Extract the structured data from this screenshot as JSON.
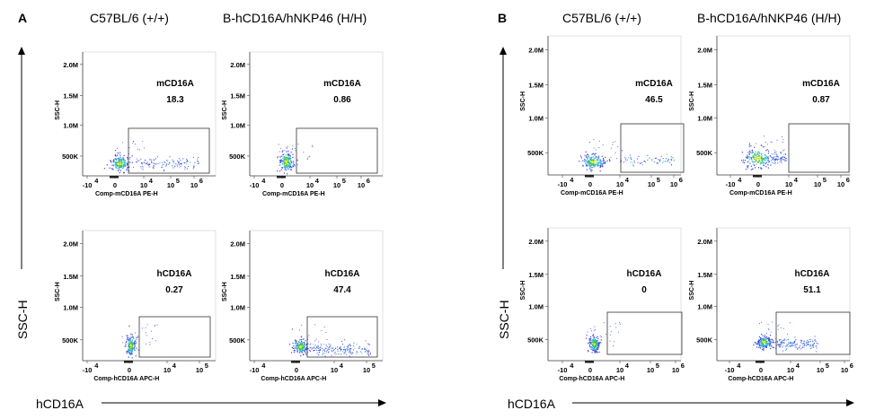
{
  "panels": [
    {
      "letter": "A",
      "col_headers": [
        "C57BL/6 (+/+)",
        "B-hCD16A/hNKP46 (H/H)"
      ],
      "big_ylabel": "SSC-H",
      "big_xlabel": "hCD16A"
    },
    {
      "letter": "B",
      "col_headers": [
        "C57BL/6 (+/+)",
        "B-hCD16A/hNKP46 (H/H)"
      ],
      "big_ylabel": "SSC-H",
      "big_xlabel": "hCD16A"
    }
  ],
  "chart_data": [
    {
      "type": "scatter",
      "panel": "A",
      "column": "C57BL/6 (+/+)",
      "gate_label": "mCD16A",
      "gate_value": "18.3",
      "xlabel": "Comp-mCD16A PE-H",
      "ylabel": "SSC-H",
      "yticks": [
        "500K",
        "1.0M",
        "1.5M",
        "2.0M"
      ],
      "xticks": [
        "-10",
        "0",
        "10",
        "10",
        "10"
      ],
      "xtick_exp": [
        "4",
        "",
        "4",
        "5",
        "6"
      ]
    },
    {
      "type": "scatter",
      "panel": "A",
      "column": "B-hCD16A/hNKP46 (H/H)",
      "gate_label": "mCD16A",
      "gate_value": "0.86",
      "xlabel": "Comp-mCD16A PE-H",
      "ylabel": "SSC-H",
      "yticks": [
        "500K",
        "1.0M",
        "1.5M",
        "2.0M"
      ],
      "xticks": [
        "-10",
        "0",
        "10",
        "10",
        "10"
      ],
      "xtick_exp": [
        "4",
        "",
        "4",
        "5",
        "6"
      ]
    },
    {
      "type": "scatter",
      "panel": "A",
      "column": "C57BL/6 (+/+)",
      "gate_label": "hCD16A",
      "gate_value": "0.27",
      "xlabel": "Comp-hCD16A APC-H",
      "ylabel": "SSC-H",
      "yticks": [
        "500K",
        "1.0M",
        "1.5M",
        "2.0M"
      ],
      "xticks": [
        "-10",
        "0",
        "10",
        "10"
      ],
      "xtick_exp": [
        "4",
        "",
        "4",
        "5"
      ]
    },
    {
      "type": "scatter",
      "panel": "A",
      "column": "B-hCD16A/hNKP46 (H/H)",
      "gate_label": "hCD16A",
      "gate_value": "47.4",
      "xlabel": "Comp-hCD16A APC-H",
      "ylabel": "SSC-H",
      "yticks": [
        "500K",
        "1.0M",
        "1.5M",
        "2.0M"
      ],
      "xticks": [
        "-10",
        "0",
        "10",
        "10"
      ],
      "xtick_exp": [
        "4",
        "",
        "4",
        "5"
      ]
    },
    {
      "type": "scatter",
      "panel": "B",
      "column": "C57BL/6 (+/+)",
      "gate_label": "mCD16A",
      "gate_value": "46.5",
      "xlabel": "Comp-mCD16A PE-H",
      "ylabel": "SSC-H",
      "yticks": [
        "500K",
        "1.0M",
        "1.5M",
        "2.0M"
      ],
      "xticks": [
        "-10",
        "0",
        "10",
        "10",
        "10"
      ],
      "xtick_exp": [
        "4",
        "",
        "4",
        "5",
        "6"
      ]
    },
    {
      "type": "scatter",
      "panel": "B",
      "column": "B-hCD16A/hNKP46 (H/H)",
      "gate_label": "mCD16A",
      "gate_value": "0.87",
      "xlabel": "Comp-mCD16A PE-H",
      "ylabel": "SSC-H",
      "yticks": [
        "500K",
        "1.0M",
        "1.5M",
        "2.0M"
      ],
      "xticks": [
        "-10",
        "0",
        "10",
        "10",
        "10"
      ],
      "xtick_exp": [
        "4",
        "",
        "4",
        "5",
        "6"
      ]
    },
    {
      "type": "scatter",
      "panel": "B",
      "column": "C57BL/6 (+/+)",
      "gate_label": "hCD16A",
      "gate_value": "0",
      "xlabel": "Comp-hCD16A APC-H",
      "ylabel": "SSC-H",
      "yticks": [
        "500K",
        "1.0M",
        "1.5M",
        "2.0M"
      ],
      "xticks": [
        "-10",
        "0",
        "10",
        "10",
        "10"
      ],
      "xtick_exp": [
        "4",
        "",
        "4",
        "5",
        "6"
      ]
    },
    {
      "type": "scatter",
      "panel": "B",
      "column": "B-hCD16A/hNKP46 (H/H)",
      "gate_label": "hCD16A",
      "gate_value": "51.1",
      "xlabel": "Comp-hCD16A APC-H",
      "ylabel": "SSC-H",
      "yticks": [
        "500K",
        "1.0M",
        "1.5M",
        "2.0M"
      ],
      "xticks": [
        "-10",
        "0",
        "10",
        "10",
        "10"
      ],
      "xtick_exp": [
        "4",
        "",
        "4",
        "5",
        "6"
      ]
    }
  ],
  "colors": {
    "dots_low": "#3b4bd6",
    "dots_mid": "#2fb7e0",
    "dots_high": "#37c43a",
    "dots_core": "#d7e02a",
    "frame": "#555555"
  }
}
